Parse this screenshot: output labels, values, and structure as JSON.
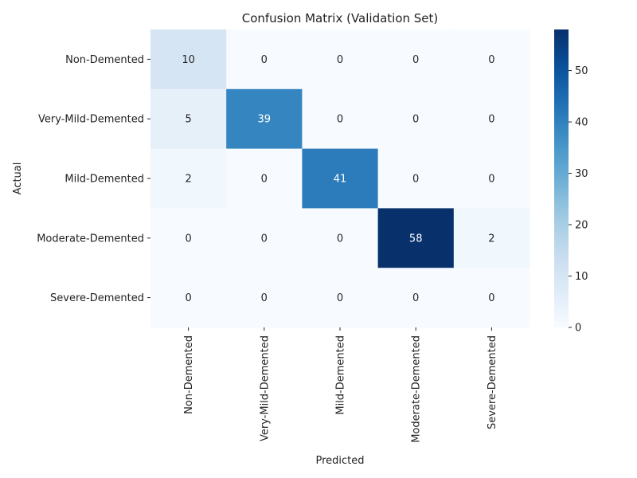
{
  "chart_data": {
    "type": "heatmap",
    "title": "Confusion Matrix (Validation Set)",
    "xlabel": "Predicted",
    "ylabel": "Actual",
    "x_categories": [
      "Non-Demented",
      "Very-Mild-Demented",
      "Mild-Demented",
      "Moderate-Demented",
      "Severe-Demented"
    ],
    "y_categories": [
      "Non-Demented",
      "Very-Mild-Demented",
      "Mild-Demented",
      "Moderate-Demented",
      "Severe-Demented"
    ],
    "values": [
      [
        10,
        0,
        0,
        0,
        0
      ],
      [
        5,
        39,
        0,
        0,
        0
      ],
      [
        2,
        0,
        41,
        0,
        0
      ],
      [
        0,
        0,
        0,
        58,
        2
      ],
      [
        0,
        0,
        0,
        0,
        0
      ]
    ],
    "colormap": "Blues",
    "colorbar": {
      "min": 0,
      "max": 58,
      "ticks": [
        0,
        10,
        20,
        30,
        40,
        50
      ]
    },
    "annotations": true,
    "grid": false
  }
}
